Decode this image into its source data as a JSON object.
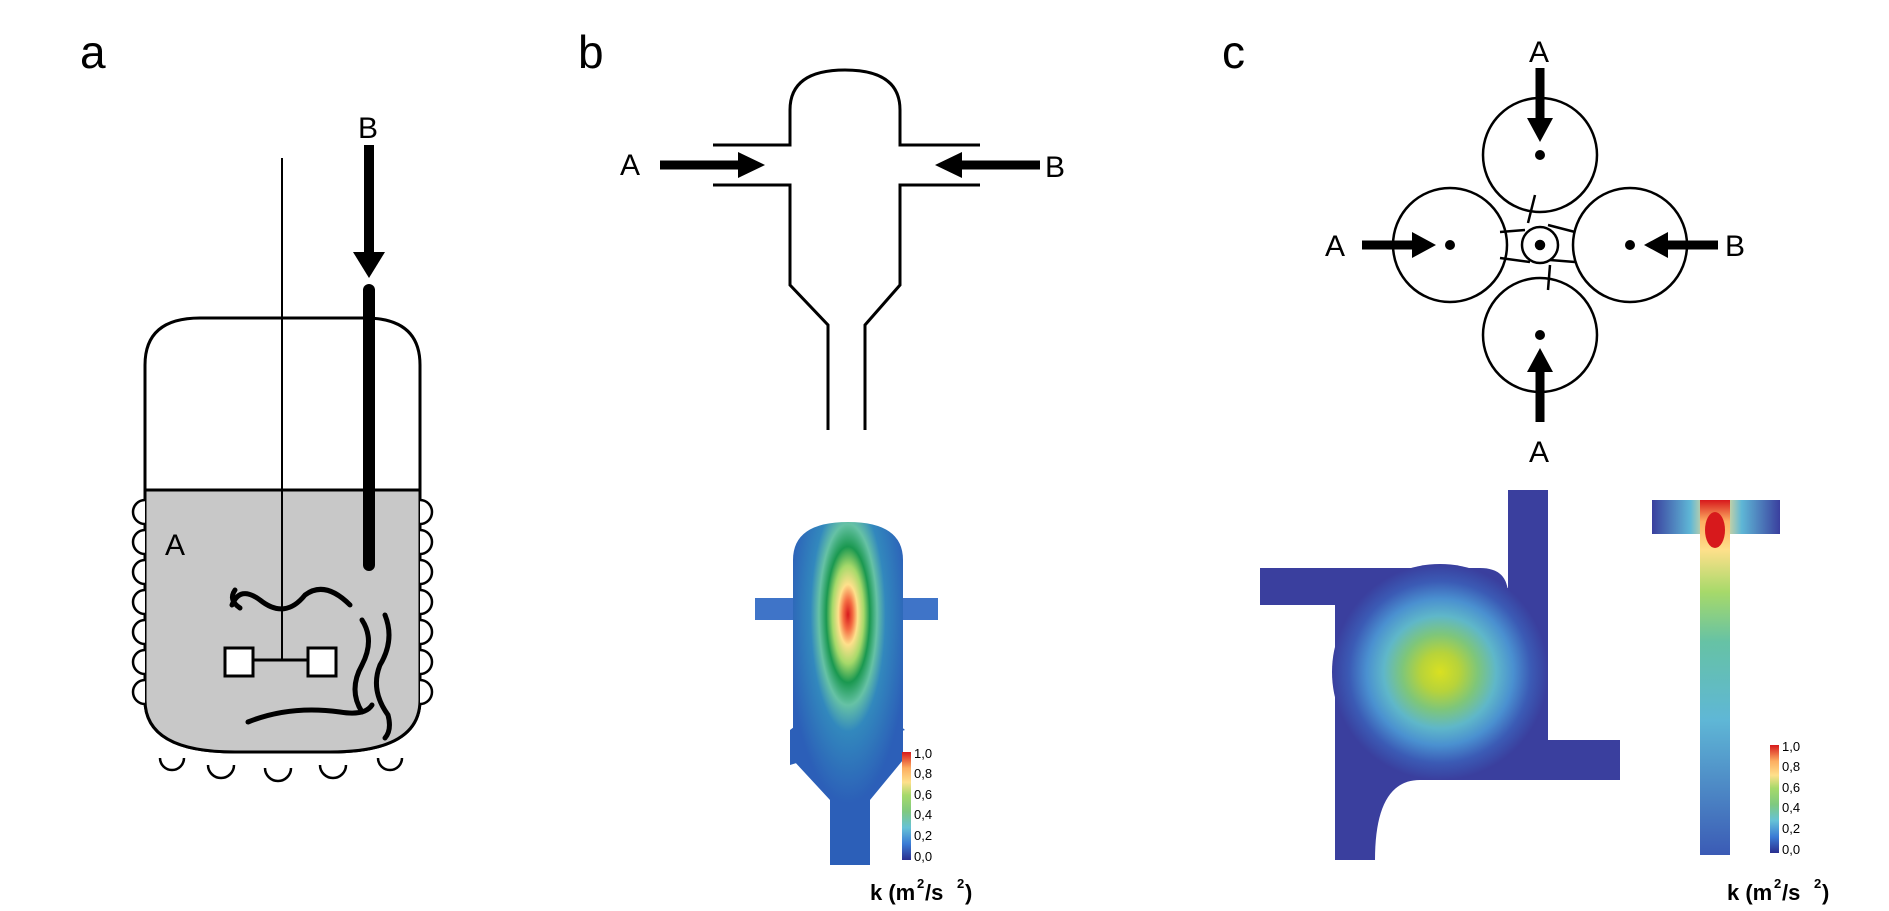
{
  "panels": {
    "a": {
      "letter": "a",
      "inlet_label": "B",
      "liquid_label": "A"
    },
    "b": {
      "letter": "b",
      "inlet_left_label": "A",
      "inlet_right_label": "B",
      "colorbar": {
        "ticks": [
          "1,0",
          "0,8",
          "0,6",
          "0,4",
          "0,2",
          "0,0"
        ],
        "unit_main": "k (m",
        "unit_sup1": "2",
        "unit_mid": "/s",
        "unit_sup2": "2",
        "unit_end": ")"
      }
    },
    "c": {
      "letter": "c",
      "inlet_top_label": "A",
      "inlet_left_label": "A",
      "inlet_right_label": "B",
      "inlet_bottom_label": "A",
      "colorbar": {
        "ticks": [
          "1,0",
          "0,8",
          "0,6",
          "0,4",
          "0,2",
          "0,0"
        ],
        "unit_main": "k (m",
        "unit_sup1": "2",
        "unit_mid": "/s",
        "unit_sup2": "2",
        "unit_end": ")"
      }
    }
  },
  "colors": {
    "liquid": "#c8c8c8",
    "contour_low": "#3a3f9e",
    "contour_high": "#d7191c"
  }
}
